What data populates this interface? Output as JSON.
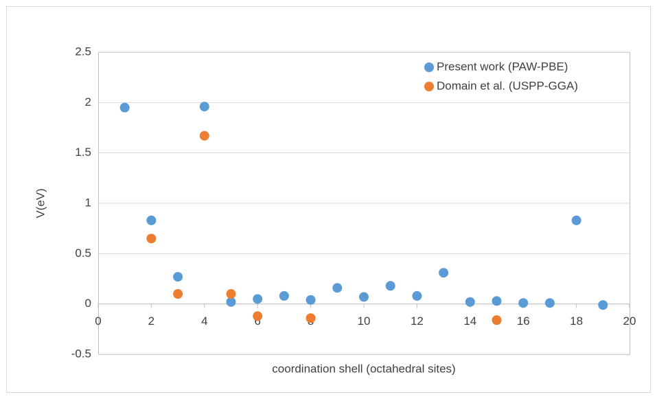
{
  "chart_data": {
    "type": "scatter",
    "x_label": "coordination shell (octahedral sites)",
    "y_label": "V(eV)",
    "xlim": [
      0,
      20
    ],
    "xticks": [
      0,
      2,
      4,
      6,
      8,
      10,
      12,
      14,
      16,
      18,
      20
    ],
    "ylim": [
      -0.5,
      2.5
    ],
    "yticks": [
      -0.5,
      0,
      0.5,
      1,
      1.5,
      2,
      2.5
    ],
    "grid": true,
    "legend": "top-right",
    "series": [
      {
        "name": "Present work (PAW-PBE)",
        "color": "#5b9bd5",
        "x": [
          1,
          2,
          3,
          4,
          5,
          6,
          7,
          8,
          9,
          10,
          11,
          12,
          13,
          14,
          15,
          16,
          17,
          18,
          19
        ],
        "values": [
          1.95,
          0.83,
          0.27,
          1.96,
          0.02,
          0.05,
          0.08,
          0.04,
          0.16,
          0.07,
          0.18,
          0.08,
          0.31,
          0.02,
          0.03,
          0.01,
          0.01,
          0.83,
          -0.01
        ]
      },
      {
        "name": "Domain et al. (USPP-GGA)",
        "color": "#ed7d31",
        "x": [
          2,
          3,
          4,
          5,
          6,
          8,
          15
        ],
        "values": [
          0.65,
          0.1,
          1.67,
          0.1,
          -0.12,
          -0.14,
          -0.16
        ]
      }
    ]
  }
}
